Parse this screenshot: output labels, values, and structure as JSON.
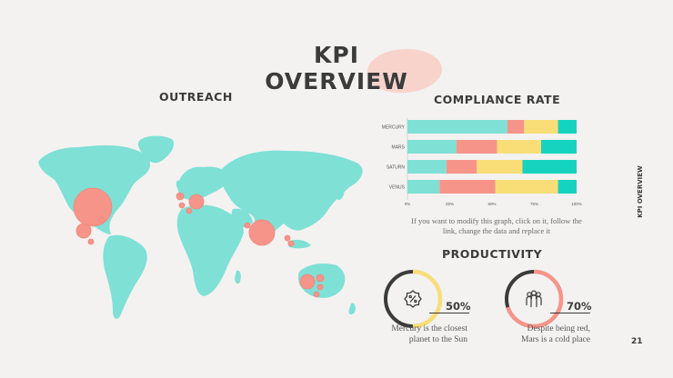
{
  "slide": {
    "title_line1": "KPI",
    "title_line2": "OVERVIEW",
    "side_label": "KPI OVERVIEW",
    "page_number": "21"
  },
  "outreach": {
    "heading": "OUTREACH"
  },
  "compliance": {
    "heading": "COMPLIANCE RATE",
    "note": "If you want to modify this graph, click on it, follow the link, change the data and replace it"
  },
  "chart_data": {
    "type": "bar",
    "orientation": "horizontal",
    "stacked": true,
    "categories": [
      "MERCURY",
      "MARS",
      "SATURN",
      "VENUS"
    ],
    "series": [
      {
        "values": [
          59,
          29,
          23,
          19
        ]
      },
      {
        "values": [
          10,
          24,
          18,
          33
        ]
      },
      {
        "values": [
          20,
          26,
          27,
          37
        ]
      },
      {
        "values": [
          11,
          21,
          32,
          11
        ]
      }
    ],
    "xlim": [
      0,
      100
    ],
    "xticks": [
      "0%",
      "25%",
      "50%",
      "75%",
      "100%"
    ],
    "series_colors": [
      "#7fe0d6",
      "#f7948a",
      "#f9de78",
      "#16d3c0"
    ],
    "grid": false
  },
  "productivity": {
    "heading": "PRODUCTIVITY",
    "items": [
      {
        "value": 0.5,
        "pct_label": "50%",
        "desc_line1": "Mercury is the closest",
        "desc_line2": "planet to the Sun",
        "icon": "percent-badge-icon",
        "ring_color": "#f9de78"
      },
      {
        "value": 0.7,
        "pct_label": "70%",
        "desc_line1": "Despite being red,",
        "desc_line2": "Mars is a cold place",
        "icon": "group-people-icon",
        "ring_color": "#f7948a"
      }
    ]
  },
  "colors": {
    "map_fill": "#7fe0d6",
    "bubble": "#f7948a",
    "dark_ring": "#3b3b3b",
    "background": "#f3f2f1"
  }
}
